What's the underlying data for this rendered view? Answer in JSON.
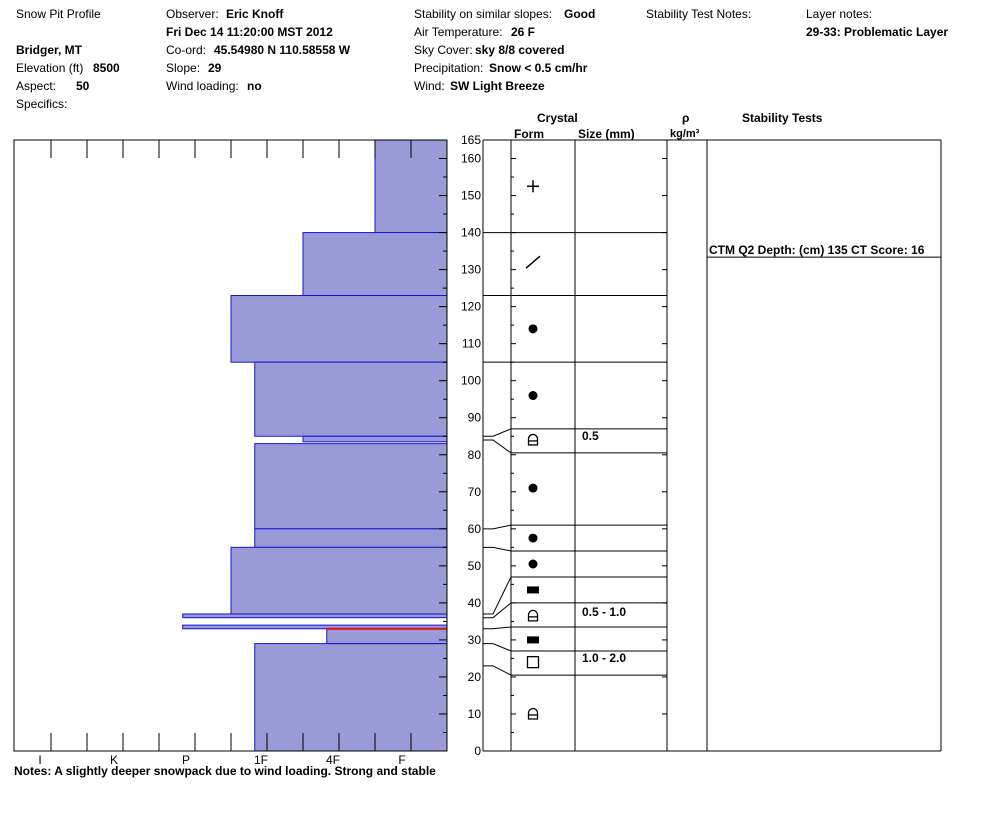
{
  "header": {
    "title": "Snow Pit Profile",
    "location": "Bridger, MT",
    "elevation": {
      "label": "Elevation (ft)",
      "value": "8500"
    },
    "aspect": {
      "label": "Aspect:",
      "value": "50"
    },
    "specifics": {
      "label": "Specifics:"
    },
    "observer": {
      "label": "Observer:",
      "value": "Eric Knoff"
    },
    "datetime": "Fri Dec 14 11:20:00 MST 2012",
    "coord": {
      "label": "Co-ord:",
      "value": "45.54980 N 110.58558 W"
    },
    "slope": {
      "label": "Slope:",
      "value": "29"
    },
    "wind_loading": {
      "label": "Wind loading:",
      "value": "no"
    },
    "stability": {
      "label": "Stability on similar slopes:",
      "value": "Good"
    },
    "air_temp": {
      "label": "Air Temperature:",
      "value": "26 F"
    },
    "sky": {
      "label": "Sky Cover:",
      "value": "sky 8/8 covered"
    },
    "precip": {
      "label": "Precipitation:",
      "value": "Snow < 0.5 cm/hr"
    },
    "wind": {
      "label": "Wind:",
      "value": "SW Light Breeze"
    },
    "stability_notes_label": "Stability Test Notes:",
    "layer_notes_label": "Layer notes:",
    "layer_notes_value": "29-33: Problematic Layer"
  },
  "columns": {
    "crystal": "Crystal",
    "form": "Form",
    "size": "Size (mm)",
    "rho": "ρ",
    "density_unit": "kg/m³",
    "stability_tests": "Stability Tests"
  },
  "notes": "Notes:  A slightly deeper snowpack due to wind loading.  Strong and stable",
  "chart_data": {
    "type": "bar",
    "title": "",
    "hardness_ticks": [
      "I",
      "K",
      "P",
      "1F",
      "4F",
      "F"
    ],
    "ylim": [
      0,
      165
    ],
    "yticks": [
      0,
      10,
      20,
      30,
      40,
      50,
      60,
      70,
      80,
      90,
      100,
      110,
      120,
      130,
      140,
      150,
      160,
      165
    ],
    "hardness_layers": [
      {
        "top": 165,
        "bottom": 140,
        "hardness": 1.0
      },
      {
        "top": 140,
        "bottom": 123,
        "hardness": 2.0
      },
      {
        "top": 123,
        "bottom": 105,
        "hardness": 3.0
      },
      {
        "top": 105,
        "bottom": 85,
        "hardness": 2.67
      },
      {
        "top": 85,
        "bottom": 83.5,
        "hardness": 2.0
      },
      {
        "top": 83,
        "bottom": 60,
        "hardness": 2.67
      },
      {
        "top": 60,
        "bottom": 55,
        "hardness": 2.67
      },
      {
        "top": 55,
        "bottom": 37,
        "hardness": 3.0
      },
      {
        "top": 37,
        "bottom": 36,
        "hardness": 3.67
      },
      {
        "top": 34,
        "bottom": 33,
        "hardness": 3.67
      },
      {
        "top": 33,
        "bottom": 29,
        "hardness": 1.67
      },
      {
        "top": 29,
        "bottom": 0,
        "hardness": 2.67
      }
    ],
    "red_line": 33,
    "layer_boundaries": [
      {
        "left": 165,
        "right": 165
      },
      {
        "left": 140,
        "right": 140
      },
      {
        "left": 123,
        "right": 123
      },
      {
        "left": 105,
        "right": 105
      },
      {
        "left": 85,
        "right": 87
      },
      {
        "left": 84,
        "right": 80.5
      },
      {
        "left": 60,
        "right": 61
      },
      {
        "left": 55,
        "right": 54
      },
      {
        "left": 37,
        "right": 47
      },
      {
        "left": 36,
        "right": 40
      },
      {
        "left": 33,
        "right": 33.5
      },
      {
        "left": 29,
        "right": 27
      },
      {
        "left": 23,
        "right": 20.5
      },
      {
        "left": 0,
        "right": 0
      }
    ],
    "crystals": [
      {
        "depth": 152.5,
        "form": "new-snow"
      },
      {
        "depth": 132,
        "form": "decomposing"
      },
      {
        "depth": 114,
        "form": "rounded"
      },
      {
        "depth": 96,
        "form": "rounded"
      },
      {
        "depth": 84,
        "form": "depth-hoar",
        "size": "0.5"
      },
      {
        "depth": 71,
        "form": "rounded"
      },
      {
        "depth": 57.5,
        "form": "rounded"
      },
      {
        "depth": 50.5,
        "form": "rounded"
      },
      {
        "depth": 43.5,
        "form": "ice-layer"
      },
      {
        "depth": 36.5,
        "form": "depth-hoar",
        "size": "0.5 - 1.0"
      },
      {
        "depth": 30,
        "form": "ice-layer"
      },
      {
        "depth": 24,
        "form": "faceted",
        "size": "1.0 - 2.0"
      },
      {
        "depth": 10,
        "form": "depth-hoar"
      }
    ],
    "stability_tests": [
      {
        "depth": 135,
        "text": "CTM Q2 Depth: (cm) 135 CT Score: 16"
      }
    ]
  }
}
